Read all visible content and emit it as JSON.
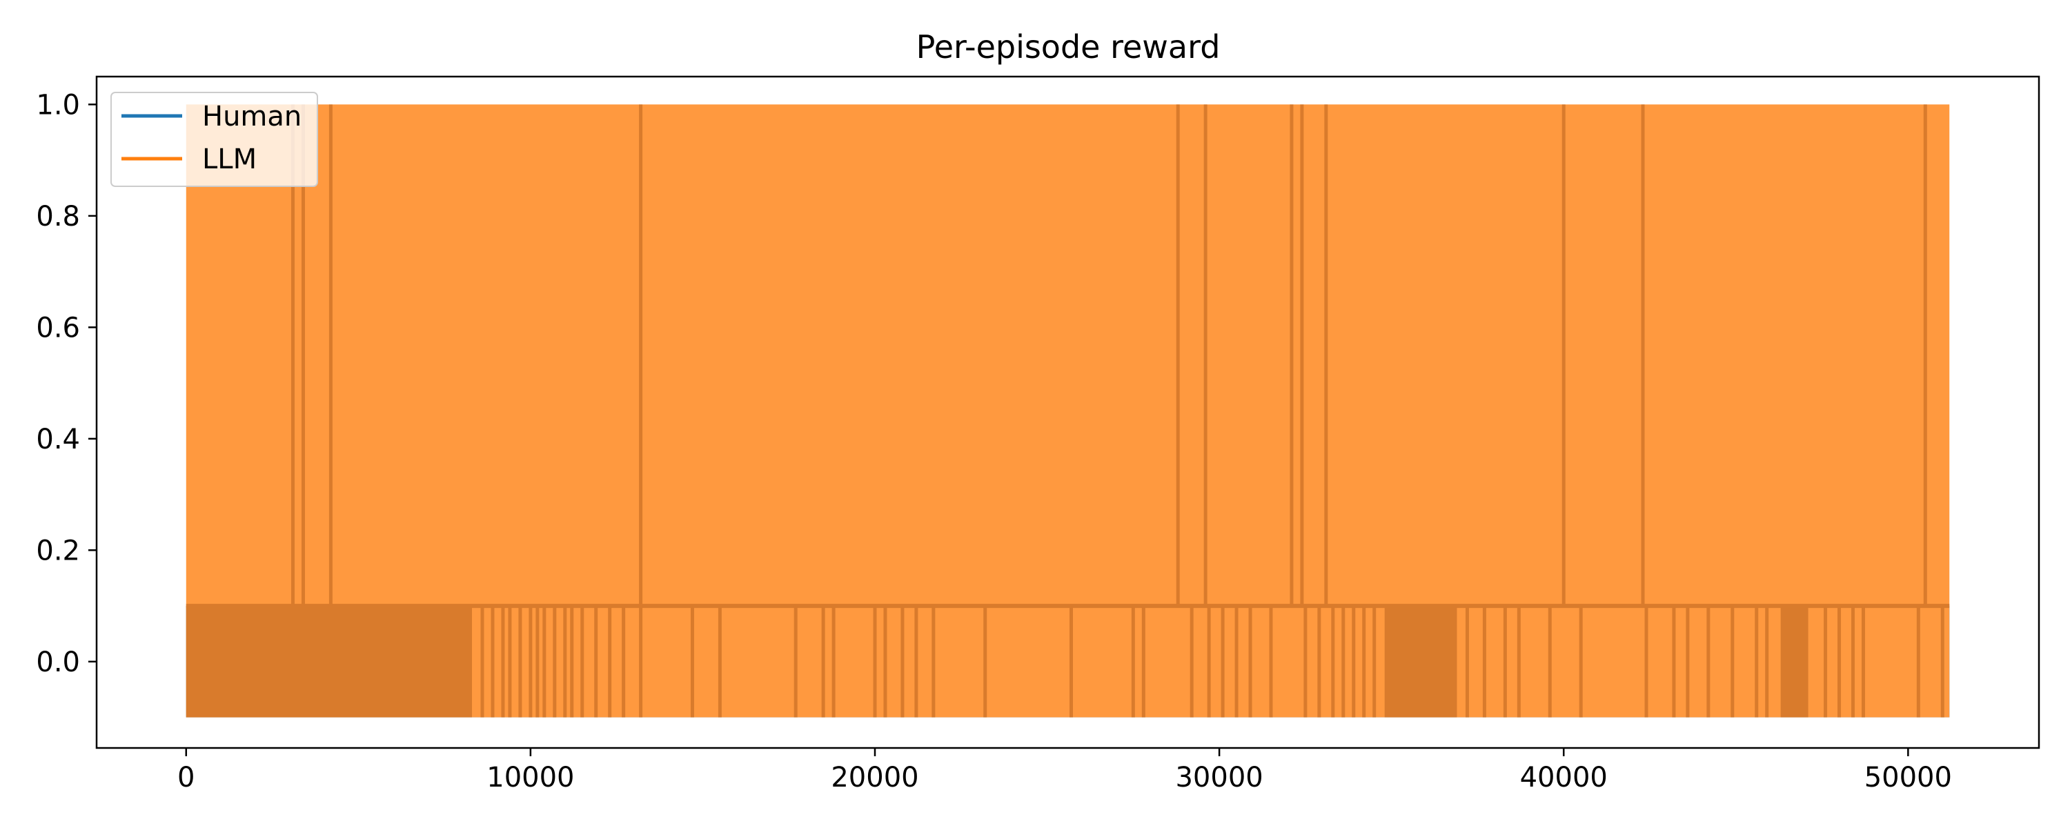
{
  "colors": {
    "human": "#1f77b4",
    "llm": "#ff7f0e",
    "llm_overlap": "#d97b2c",
    "background": "#ffffff",
    "axes": "#000000"
  },
  "chart_data": {
    "type": "line",
    "title": "Per-episode reward",
    "xlabel": "",
    "ylabel": "",
    "xlim": [
      -2600,
      53800
    ],
    "ylim": [
      -0.155,
      1.05
    ],
    "xticks": [
      0,
      10000,
      20000,
      30000,
      40000,
      50000
    ],
    "xtick_labels": [
      "0",
      "10000",
      "20000",
      "30000",
      "40000",
      "50000"
    ],
    "yticks": [
      0.0,
      0.2,
      0.4,
      0.6,
      0.8,
      1.0
    ],
    "ytick_labels": [
      "0.0",
      "0.2",
      "0.4",
      "0.6",
      "0.8",
      "1.0"
    ],
    "grid": false,
    "legend": {
      "location": "top-left",
      "entries": [
        "Human",
        "LLM"
      ]
    },
    "series": [
      {
        "name": "Human",
        "color": "#1f77b4",
        "episode_range": [
          0,
          51200
        ],
        "values_observed": [
          -0.1,
          0.1
        ],
        "note_visible": "fully covered by LLM series"
      },
      {
        "name": "LLM",
        "color": "#ff7f0e",
        "episode_range": [
          0,
          51200
        ],
        "values_observed": [
          -0.1,
          0.1,
          1.0
        ],
        "dense_low_bands": [
          [
            0,
            8300
          ],
          [
            34800,
            36900
          ],
          [
            46300,
            47100
          ]
        ],
        "low_switch_episodes": [
          8600,
          8900,
          9200,
          9400,
          9700,
          10000,
          10200,
          10400,
          10700,
          11000,
          11200,
          11500,
          11900,
          12300,
          12700,
          13200,
          14700,
          15500,
          17700,
          18500,
          18800,
          20000,
          20300,
          20800,
          21200,
          21700,
          23200,
          25700,
          27500,
          27800,
          29200,
          29700,
          30100,
          30500,
          30900,
          31500,
          32500,
          32900,
          33300,
          33600,
          33900,
          34200,
          34500,
          37200,
          37700,
          38300,
          38700,
          39600,
          40500,
          42400,
          43200,
          43600,
          44200,
          44900,
          45600,
          45900,
          47600,
          48000,
          48400,
          48700,
          50300,
          51000
        ],
        "high_dip_episodes": [
          3100,
          3400,
          4200,
          13200,
          28800,
          29600,
          32100,
          32400,
          33100,
          40000,
          42300,
          50500
        ]
      }
    ]
  }
}
